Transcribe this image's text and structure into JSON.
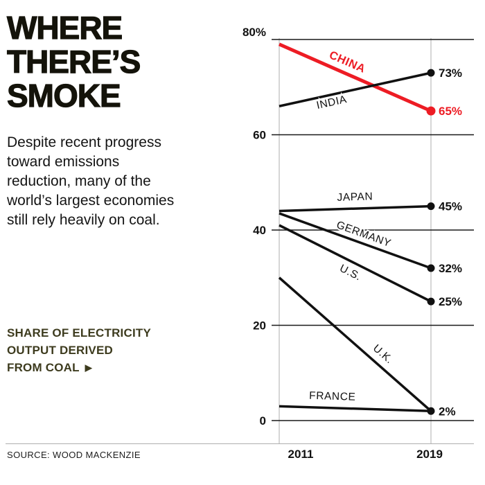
{
  "page": {
    "title_lines": [
      "WHERE",
      "THERE’S",
      "SMOKE"
    ],
    "description": "Despite recent progress toward emissions reduction, many of the world’s largest economies still rely heavily on coal.",
    "kicker_lines": [
      "SHARE OF ELECTRICITY",
      "OUTPUT DERIVED",
      "FROM COAL"
    ],
    "kicker_arrow": "▶",
    "source": "SOURCE: WOOD MACKENZIE"
  },
  "colors": {
    "accent_red": "#ed1c24",
    "ink": "#111111",
    "kicker_olive": "#3d3b1e",
    "grid_light": "#c8c8c8"
  },
  "chart_data": {
    "type": "line",
    "title": "WHERE THERE'S SMOKE",
    "subtitle": "Share of electricity output derived from coal",
    "x_tick_labels": [
      "2011",
      "2019"
    ],
    "y_ticks": [
      0,
      20,
      40,
      60,
      80
    ],
    "y_tick_labels": [
      "0",
      "20",
      "40",
      "60",
      "80%"
    ],
    "ylim": [
      0,
      80
    ],
    "grid": true,
    "legend_position": "on-line-labels",
    "series": [
      {
        "name": "CHINA",
        "values": [
          79,
          65
        ],
        "color": "#ed1c24",
        "line_width": 5,
        "emphasis": true,
        "end_dot": true,
        "end_label": "65%",
        "label_t": 0.44,
        "label_offset": -12
      },
      {
        "name": "INDIA",
        "values": [
          66,
          73
        ],
        "color": "#111111",
        "line_width": 3.5,
        "emphasis": false,
        "end_dot": true,
        "end_label": "73%",
        "label_t": 0.35,
        "label_offset": 16
      },
      {
        "name": "JAPAN",
        "values": [
          44,
          45
        ],
        "color": "#111111",
        "line_width": 3.5,
        "emphasis": false,
        "end_dot": true,
        "end_label": "45%",
        "label_t": 0.5,
        "label_offset": -12
      },
      {
        "name": "GERMANY",
        "values": [
          43.5,
          32
        ],
        "color": "#111111",
        "line_width": 3.5,
        "emphasis": false,
        "end_dot": true,
        "end_label": "32%",
        "label_t": 0.55,
        "label_offset": -9
      },
      {
        "name": "U.S.",
        "values": [
          41,
          25
        ],
        "color": "#111111",
        "line_width": 3.5,
        "emphasis": false,
        "end_dot": true,
        "end_label": "25%",
        "label_t": 0.46,
        "label_offset": 22
      },
      {
        "name": "U.K.",
        "values": [
          30,
          2
        ],
        "color": "#111111",
        "line_width": 3.5,
        "emphasis": false,
        "end_dot": true,
        "end_label": "2%",
        "label_t": 0.67,
        "label_offset": -15
      },
      {
        "name": "FRANCE",
        "values": [
          3,
          2
        ],
        "color": "#111111",
        "line_width": 3.5,
        "emphasis": false,
        "end_dot": false,
        "end_label": "",
        "label_t": 0.35,
        "label_offset": -12
      }
    ]
  }
}
